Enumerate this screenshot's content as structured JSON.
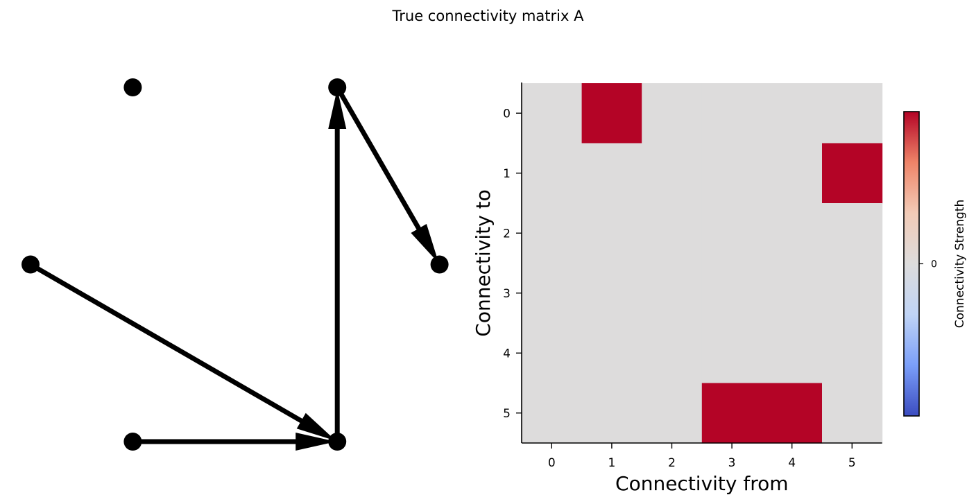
{
  "figure": {
    "title": "True connectivity matrix A"
  },
  "chart_data": [
    {
      "type": "network",
      "node_color": "#000000",
      "edge_color": "#000000",
      "nodes": [
        {
          "id": 0,
          "x": 1.0,
          "y": 2.0
        },
        {
          "id": 1,
          "x": 0.0,
          "y": 1.0
        },
        {
          "id": 2,
          "x": 1.0,
          "y": 0.0
        },
        {
          "id": 3,
          "x": 3.0,
          "y": 0.0
        },
        {
          "id": 4,
          "x": 3.0,
          "y": 2.0
        },
        {
          "id": 5,
          "x": 4.0,
          "y": 1.0
        }
      ],
      "edges": [
        {
          "from": 1,
          "to": 3
        },
        {
          "from": 2,
          "to": 3
        },
        {
          "from": 3,
          "to": 4
        },
        {
          "from": 4,
          "to": 5
        }
      ]
    },
    {
      "type": "heatmap",
      "xlabel": "Connectivity from",
      "ylabel": "Connectivity to",
      "x_ticks": [
        "0",
        "1",
        "2",
        "3",
        "4",
        "5"
      ],
      "y_ticks": [
        "0",
        "1",
        "2",
        "3",
        "4",
        "5"
      ],
      "matrix": [
        [
          0,
          1,
          0,
          0,
          0,
          0
        ],
        [
          0,
          0,
          0,
          0,
          0,
          1
        ],
        [
          0,
          0,
          0,
          0,
          0,
          0
        ],
        [
          0,
          0,
          0,
          0,
          0,
          0
        ],
        [
          0,
          0,
          0,
          0,
          0,
          0
        ],
        [
          0,
          0,
          0,
          1,
          1,
          0
        ]
      ],
      "colormap": "coolwarm",
      "colormap_stops": [
        "#3b4cc0",
        "#7b9ff9",
        "#c0d4f5",
        "#dddcdc",
        "#f2cbb7",
        "#ee8468",
        "#b40426"
      ],
      "zero_color": "#dddcdc",
      "positive_color": "#b40426",
      "colorbar": {
        "label": "Connectivity Strength",
        "ticks": [
          "0"
        ]
      }
    }
  ]
}
